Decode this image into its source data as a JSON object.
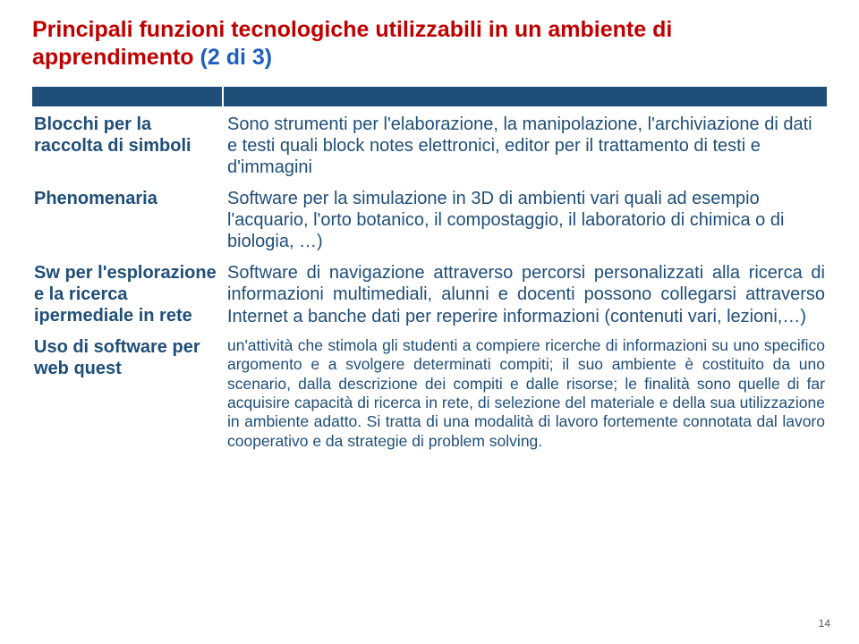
{
  "title": {
    "red": "Principali  funzioni tecnologiche utilizzabili in un ambiente di apprendimento",
    "blue": "(2 di 3)"
  },
  "rows": [
    {
      "label": "Blocchi per la raccolta di simboli",
      "desc": "Sono strumenti per l'elaborazione, la manipolazione, l'archiviazione di dati e testi quali block notes elettronici, editor per  il trattamento di testi e d'immagini",
      "justify": false,
      "small": false
    },
    {
      "label": "Phenomenaria",
      "desc": "Software per la simulazione in 3D di ambienti vari quali ad esempio l'acquario, l'orto botanico, il compostaggio, il laboratorio di chimica o di biologia, …)",
      "justify": false,
      "small": false
    },
    {
      "label": "Sw per l'esplorazione e la ricerca ipermediale in rete",
      "desc": "Software di navigazione attraverso percorsi personalizzati alla ricerca di informazioni multimediali, alunni e docenti possono collegarsi attraverso Internet a banche dati  per reperire informazioni (contenuti vari, lezioni,…)",
      "justify": true,
      "small": false
    },
    {
      "label": "Uso di software per web  quest",
      "desc": "un'attività che stimola gli studenti a compiere ricerche di informazioni su uno specifico argomento e a svolgere determinati compiti; il suo ambiente è costituito da uno scenario, dalla descrizione dei compiti e dalle risorse; le finalità sono quelle di far acquisire capacità di ricerca in rete, di selezione del materiale e della sua utilizzazione in ambiente adatto. Si tratta di una modalità di lavoro fortemente connotata dal lavoro cooperativo e da strategie di problem solving.",
      "justify": true,
      "small": true
    }
  ],
  "pageNumber": "14"
}
